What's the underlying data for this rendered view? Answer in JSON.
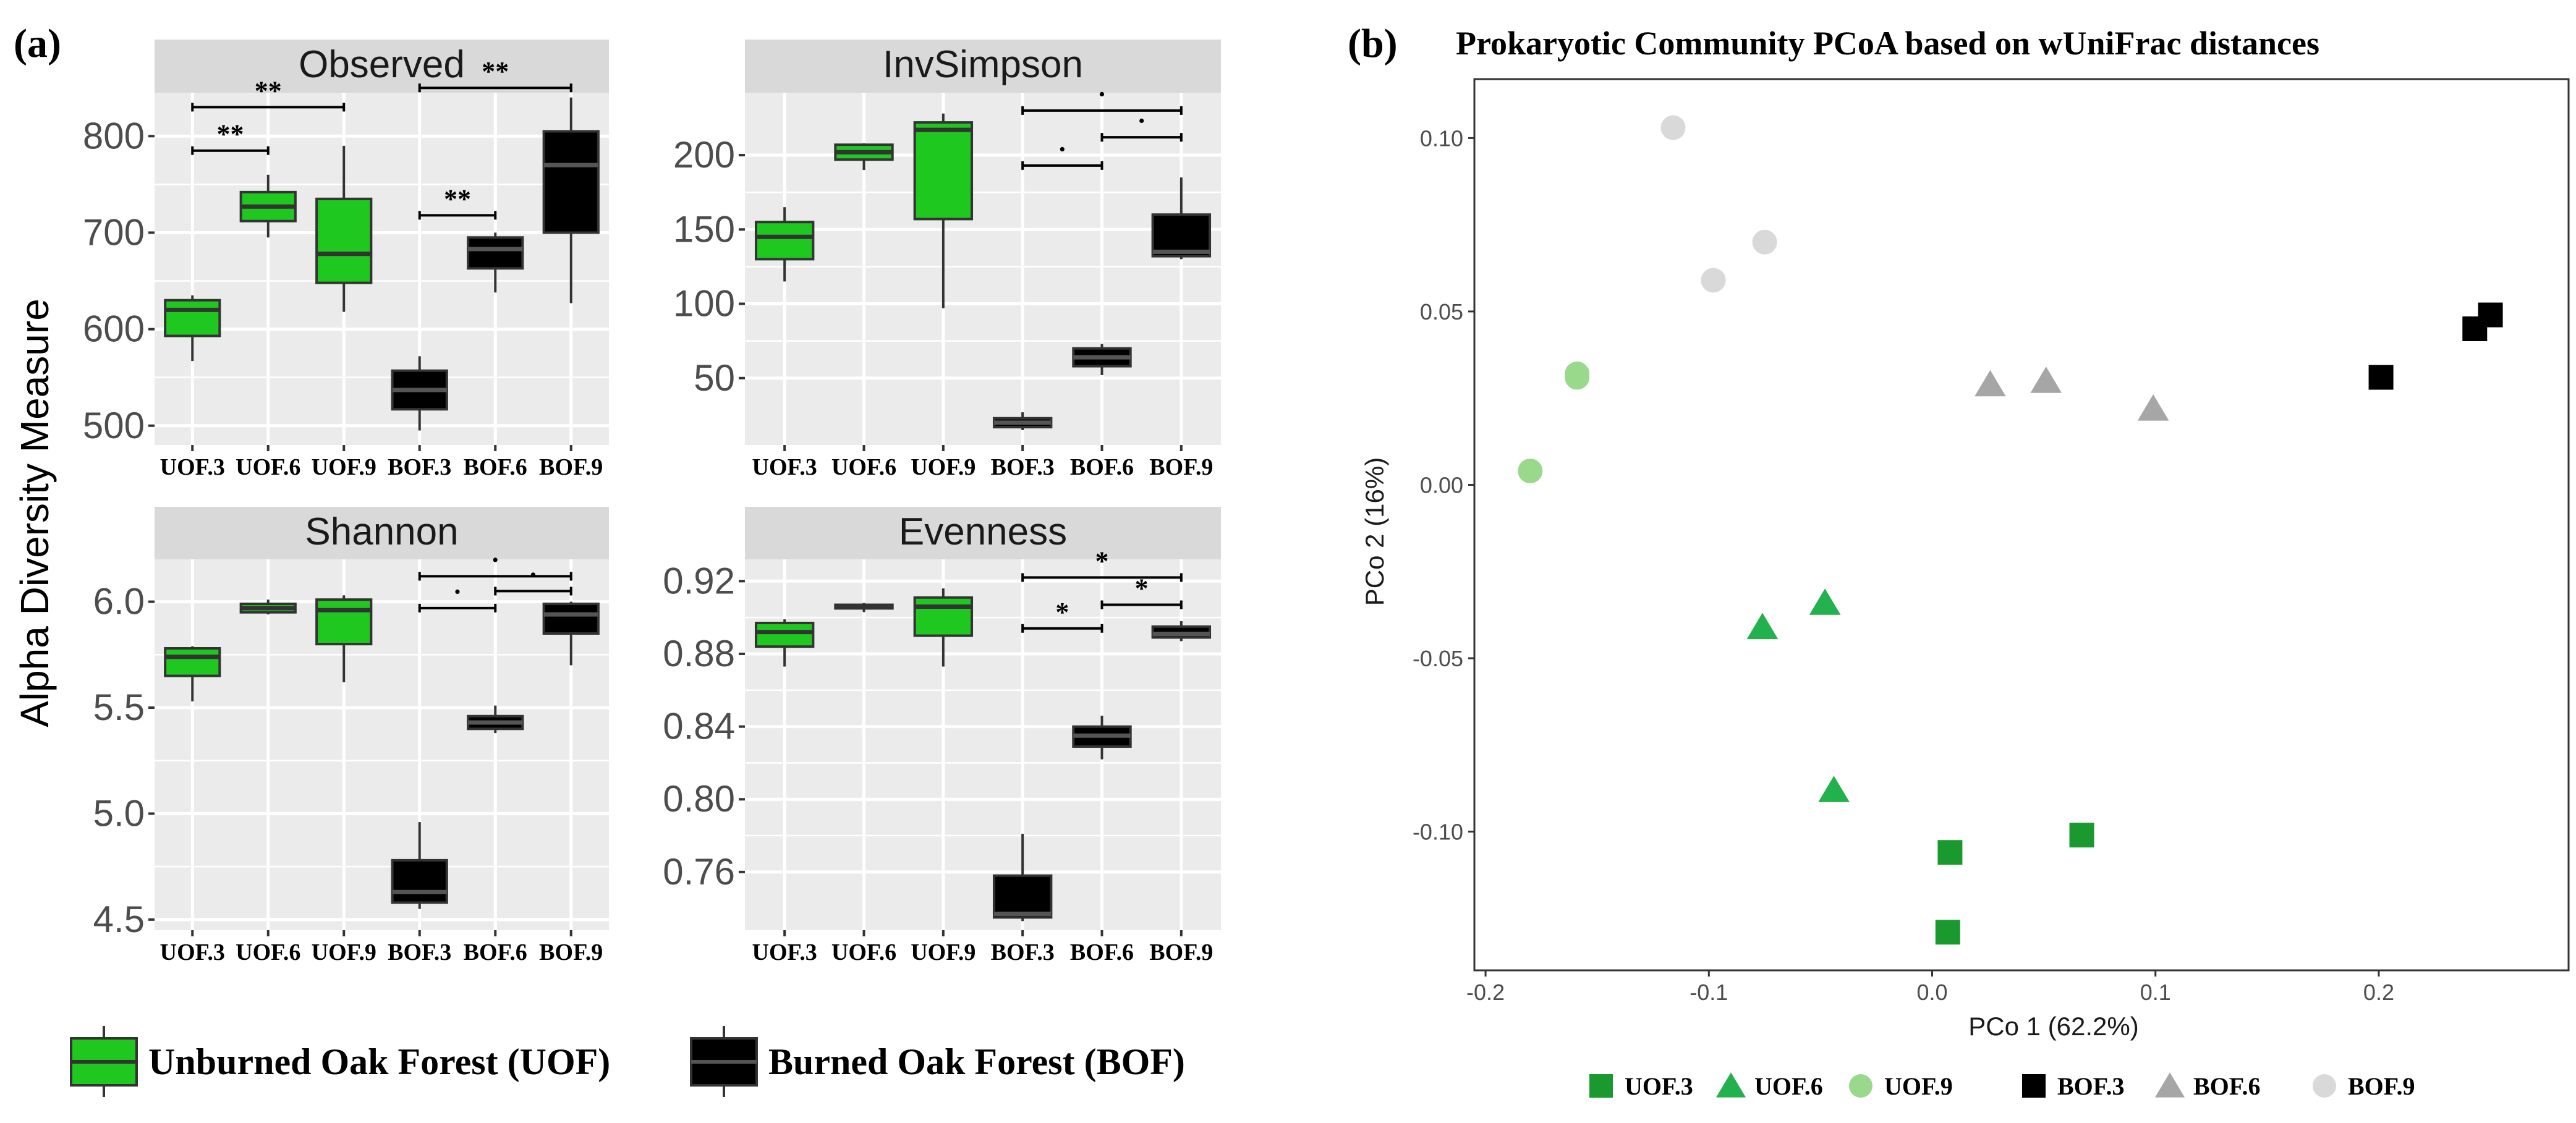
{
  "chart_data": [
    {
      "type": "box",
      "panel_label": "(a)",
      "ylabel": "Alpha Diversity Measure",
      "categories": [
        "UOF.3",
        "UOF.6",
        "UOF.9",
        "BOF.3",
        "BOF.6",
        "BOF.9"
      ],
      "colors": {
        "UOF": "#1ec81e",
        "BOF": "#000000",
        "median_UOF": "#333333",
        "median_BOF": "#555555"
      },
      "legend": [
        {
          "key": "UOF",
          "label": "Unburned Oak Forest (UOF)"
        },
        {
          "key": "BOF",
          "label": "Burned Oak Forest (BOF)"
        }
      ],
      "facets": [
        {
          "title": "Observed",
          "ylim": [
            480,
            845
          ],
          "yticks": [
            500,
            600,
            700,
            800
          ],
          "boxes": [
            {
              "min": 567,
              "q1": 593,
              "median": 620,
              "q3": 630,
              "max": 635
            },
            {
              "min": 695,
              "q1": 712,
              "median": 727,
              "q3": 742,
              "max": 760
            },
            {
              "min": 618,
              "q1": 648,
              "median": 678,
              "q3": 735,
              "max": 790
            },
            {
              "min": 495,
              "q1": 517,
              "median": 537,
              "q3": 557,
              "max": 572
            },
            {
              "min": 638,
              "q1": 663,
              "median": 683,
              "q3": 695,
              "max": 700
            },
            {
              "min": 627,
              "q1": 700,
              "median": 770,
              "q3": 805,
              "max": 840
            }
          ],
          "sig": [
            {
              "from": 0,
              "to": 1,
              "y": 785,
              "label": "**"
            },
            {
              "from": 0,
              "to": 2,
              "y": 830,
              "label": "**"
            },
            {
              "from": 3,
              "to": 4,
              "y": 718,
              "label": "**"
            },
            {
              "from": 3,
              "to": 5,
              "y": 850,
              "label": "**"
            }
          ]
        },
        {
          "title": "InvSimpson",
          "ylim": [
            5,
            242
          ],
          "yticks": [
            50,
            100,
            150,
            200
          ],
          "boxes": [
            {
              "min": 115,
              "q1": 130,
              "median": 145,
              "q3": 155,
              "max": 165
            },
            {
              "min": 190,
              "q1": 197,
              "median": 202,
              "q3": 207,
              "max": 208
            },
            {
              "min": 97,
              "q1": 157,
              "median": 217,
              "q3": 222,
              "max": 228
            },
            {
              "min": 15,
              "q1": 17,
              "median": 20,
              "q3": 23,
              "max": 27
            },
            {
              "min": 52,
              "q1": 58,
              "median": 64,
              "q3": 70,
              "max": 73
            },
            {
              "min": 130,
              "q1": 132,
              "median": 135,
              "q3": 160,
              "max": 185
            }
          ],
          "sig": [
            {
              "from": 3,
              "to": 4,
              "y": 193,
              "label": "·"
            },
            {
              "from": 4,
              "to": 5,
              "y": 212,
              "label": "·"
            },
            {
              "from": 3,
              "to": 5,
              "y": 230,
              "label": "·"
            }
          ]
        },
        {
          "title": "Shannon",
          "ylim": [
            4.45,
            6.2
          ],
          "yticks": [
            4.5,
            5.0,
            5.5,
            6.0
          ],
          "boxes": [
            {
              "min": 5.53,
              "q1": 5.65,
              "median": 5.74,
              "q3": 5.78,
              "max": 5.79
            },
            {
              "min": 5.94,
              "q1": 5.95,
              "median": 5.97,
              "q3": 5.99,
              "max": 6.01
            },
            {
              "min": 5.62,
              "q1": 5.8,
              "median": 5.96,
              "q3": 6.01,
              "max": 6.03
            },
            {
              "min": 4.55,
              "q1": 4.58,
              "median": 4.63,
              "q3": 4.78,
              "max": 4.96
            },
            {
              "min": 5.38,
              "q1": 5.4,
              "median": 5.43,
              "q3": 5.46,
              "max": 5.51
            },
            {
              "min": 5.7,
              "q1": 5.85,
              "median": 5.94,
              "q3": 5.99,
              "max": 6.0
            }
          ],
          "sig": [
            {
              "from": 3,
              "to": 4,
              "y": 5.97,
              "label": "·"
            },
            {
              "from": 4,
              "to": 5,
              "y": 6.05,
              "label": "·"
            },
            {
              "from": 3,
              "to": 5,
              "y": 6.12,
              "label": "·"
            }
          ]
        },
        {
          "title": "Evenness",
          "ylim": [
            0.728,
            0.932
          ],
          "yticks": [
            0.76,
            0.8,
            0.84,
            0.88,
            0.92
          ],
          "ytick_labels": [
            "0.76",
            "0.80",
            "0.84",
            "0.88",
            "0.92"
          ],
          "boxes": [
            {
              "min": 0.873,
              "q1": 0.884,
              "median": 0.892,
              "q3": 0.897,
              "max": 0.899
            },
            {
              "min": 0.903,
              "q1": 0.905,
              "median": 0.906,
              "q3": 0.907,
              "max": 0.908
            },
            {
              "min": 0.873,
              "q1": 0.89,
              "median": 0.906,
              "q3": 0.911,
              "max": 0.916
            },
            {
              "min": 0.733,
              "q1": 0.735,
              "median": 0.737,
              "q3": 0.758,
              "max": 0.781
            },
            {
              "min": 0.822,
              "q1": 0.829,
              "median": 0.835,
              "q3": 0.84,
              "max": 0.846
            },
            {
              "min": 0.887,
              "q1": 0.889,
              "median": 0.891,
              "q3": 0.895,
              "max": 0.898
            }
          ],
          "sig": [
            {
              "from": 3,
              "to": 4,
              "y": 0.894,
              "label": "*"
            },
            {
              "from": 4,
              "to": 5,
              "y": 0.907,
              "label": "*"
            },
            {
              "from": 3,
              "to": 5,
              "y": 0.922,
              "label": "*"
            }
          ]
        }
      ]
    },
    {
      "type": "scatter",
      "panel_label": "(b)",
      "title": "Prokaryotic Community PCoA based on wUniFrac distances",
      "xlabel": "PCo 1 (62.2%)",
      "ylabel": "PCo 2 (16%)",
      "xlim": [
        -0.205,
        0.285
      ],
      "ylim": [
        -0.14,
        0.117
      ],
      "xticks": [
        -0.2,
        -0.1,
        0.0,
        0.1,
        0.2
      ],
      "xtick_labels": [
        "-0.2",
        "-0.1",
        "0.0",
        "0.1",
        "0.2"
      ],
      "yticks": [
        -0.1,
        -0.05,
        0.0,
        0.05,
        0.1
      ],
      "ytick_labels": [
        "-0.10",
        "-0.05",
        "0.00",
        "0.05",
        "0.10"
      ],
      "series": [
        {
          "name": "UOF.3",
          "shape": "square",
          "color": "#1a9a2e",
          "points": [
            [
              0.008,
              -0.106
            ],
            [
              0.067,
              -0.101
            ],
            [
              0.007,
              -0.129
            ]
          ]
        },
        {
          "name": "UOF.6",
          "shape": "triangle",
          "color": "#22b14c",
          "points": [
            [
              -0.076,
              -0.041
            ],
            [
              -0.048,
              -0.034
            ],
            [
              -0.044,
              -0.088
            ]
          ]
        },
        {
          "name": "UOF.9",
          "shape": "circle",
          "color": "#99d98c",
          "points": [
            [
              -0.159,
              0.031
            ],
            [
              -0.159,
              0.032
            ],
            [
              -0.18,
              0.004
            ]
          ]
        },
        {
          "name": "BOF.3",
          "shape": "square",
          "color": "#000000",
          "points": [
            [
              0.201,
              0.031
            ],
            [
              0.243,
              0.045
            ],
            [
              0.25,
              0.049
            ]
          ]
        },
        {
          "name": "BOF.6",
          "shape": "triangle",
          "color": "#a6a6a6",
          "points": [
            [
              0.026,
              0.029
            ],
            [
              0.051,
              0.03
            ],
            [
              0.099,
              0.022
            ]
          ]
        },
        {
          "name": "BOF.9",
          "shape": "circle",
          "color": "#d9d9d9",
          "points": [
            [
              -0.116,
              0.103
            ],
            [
              -0.098,
              0.059
            ],
            [
              -0.075,
              0.07
            ]
          ]
        }
      ]
    }
  ]
}
